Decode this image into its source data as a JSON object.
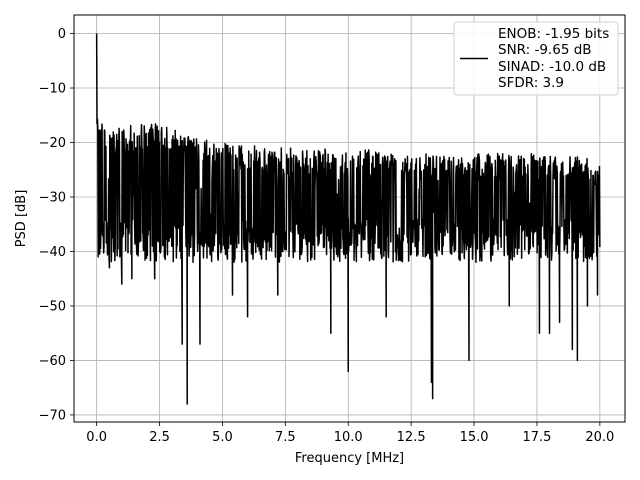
{
  "chart_data": {
    "type": "line",
    "xlabel": "Frequency [MHz]",
    "ylabel": "PSD [dB]",
    "xlim": [
      -0.9,
      21.0
    ],
    "ylim": [
      -71.3,
      3.4
    ],
    "x_ticks": [
      0.0,
      2.5,
      5.0,
      7.5,
      10.0,
      12.5,
      15.0,
      17.5,
      20.0
    ],
    "x_tick_labels": [
      "0.0",
      "2.5",
      "5.0",
      "7.5",
      "10.0",
      "12.5",
      "15.0",
      "17.5",
      "20.0"
    ],
    "y_ticks": [
      0,
      -10,
      -20,
      -30,
      -40,
      -50,
      -60,
      -70
    ],
    "y_tick_labels": [
      "0",
      "−10",
      "−20",
      "−30",
      "−40",
      "−50",
      "−60",
      "−70"
    ],
    "grid": true,
    "legend_position": "top-right",
    "legend_lines": [
      "ENOB: -1.95 bits",
      "SNR: -9.65 dB",
      "SINAD: -10.0 dB",
      "SFDR: 3.9"
    ],
    "series": [
      {
        "color": "#000000",
        "x_range": [
          0.0,
          20.0
        ],
        "noise_band": [
          -42,
          -22
        ],
        "peak_envelope": [
          [
            0.0,
            0
          ],
          [
            0.02,
            -5
          ],
          [
            0.05,
            -11
          ],
          [
            0.1,
            -15
          ],
          [
            0.2,
            -16
          ],
          [
            0.4,
            -18
          ],
          [
            1.0,
            -17
          ],
          [
            2.4,
            -16.5
          ],
          [
            3.3,
            -18
          ],
          [
            5.0,
            -20
          ],
          [
            7.5,
            -21
          ],
          [
            10.0,
            -21
          ],
          [
            12.5,
            -22
          ],
          [
            15.0,
            -22
          ],
          [
            17.5,
            -22
          ],
          [
            20.0,
            -23
          ]
        ],
        "deep_dips": [
          [
            0.05,
            -41
          ],
          [
            0.5,
            -43
          ],
          [
            1.0,
            -46
          ],
          [
            1.4,
            -45
          ],
          [
            2.3,
            -45
          ],
          [
            3.4,
            -57
          ],
          [
            3.6,
            -68
          ],
          [
            4.1,
            -57
          ],
          [
            5.4,
            -48
          ],
          [
            6.0,
            -52
          ],
          [
            7.2,
            -48
          ],
          [
            9.3,
            -55
          ],
          [
            10.0,
            -62
          ],
          [
            11.5,
            -52
          ],
          [
            13.3,
            -64
          ],
          [
            13.35,
            -67
          ],
          [
            14.8,
            -60
          ],
          [
            16.4,
            -50
          ],
          [
            17.6,
            -55
          ],
          [
            18.0,
            -55
          ],
          [
            18.4,
            -53
          ],
          [
            18.9,
            -58
          ],
          [
            19.1,
            -60
          ],
          [
            19.5,
            -50
          ],
          [
            19.9,
            -48
          ]
        ]
      }
    ]
  }
}
